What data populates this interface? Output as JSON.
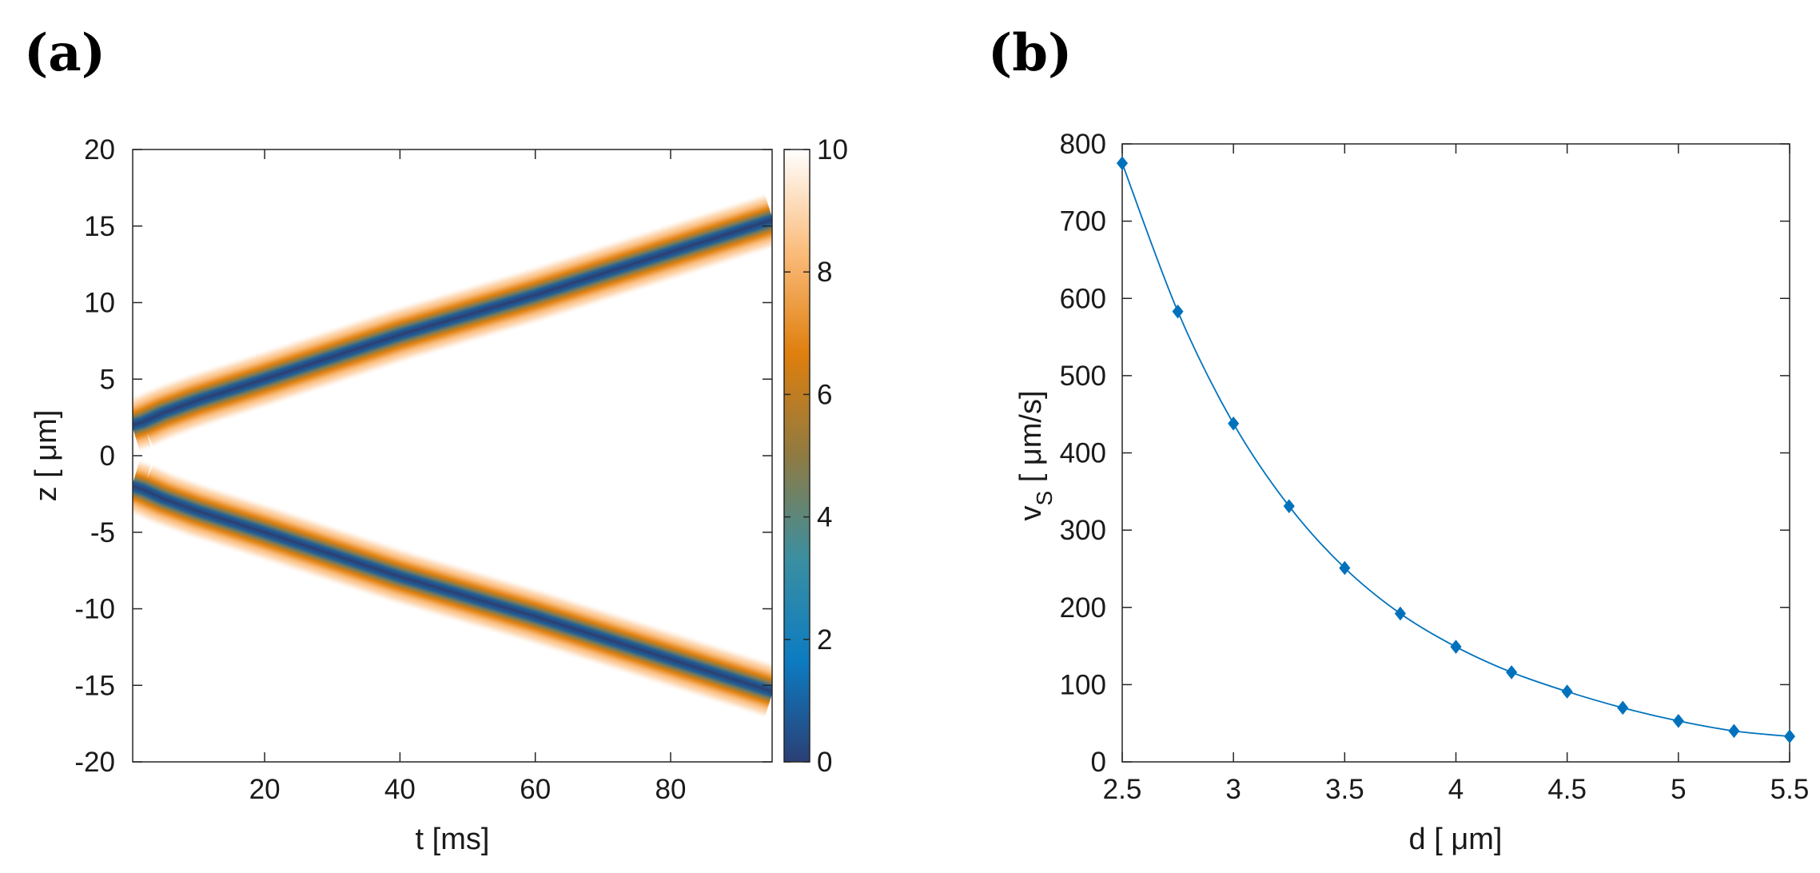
{
  "panels": {
    "a": {
      "label": "(a)"
    },
    "b": {
      "label": "(b)"
    }
  },
  "chart_data": [
    {
      "id": "a",
      "type": "heatmap",
      "title": "",
      "xlabel": "t [ms]",
      "ylabel": "z [ μm]",
      "xlim": [
        0.5,
        95
      ],
      "ylim": [
        -20,
        20
      ],
      "xticks": [
        20,
        40,
        60,
        80
      ],
      "xtick_labels": [
        "20",
        "40",
        "60",
        "80"
      ],
      "yticks": [
        -20,
        -15,
        -10,
        -5,
        0,
        5,
        10,
        15,
        20
      ],
      "ytick_labels": [
        "-20",
        "-15",
        "-10",
        "-5",
        "0",
        "5",
        "10",
        "15",
        "20"
      ],
      "colorbar": {
        "range": [
          0,
          10
        ],
        "ticks": [
          0,
          2,
          4,
          6,
          8,
          10
        ],
        "tick_labels": [
          "0",
          "2",
          "4",
          "6",
          "8",
          "10"
        ],
        "colors": [
          "#2b3f75",
          "#0c7cc2",
          "#3b8fa0",
          "#8f7a42",
          "#df7f0d",
          "#fbbc7c",
          "#ffffff"
        ]
      },
      "tracks": [
        {
          "name": "upper",
          "t": [
            0.5,
            2,
            5,
            10,
            20,
            40,
            60,
            80,
            95
          ],
          "z": [
            2.0,
            2.2,
            2.8,
            3.6,
            5.0,
            7.9,
            10.5,
            13.3,
            15.4
          ]
        },
        {
          "name": "lower",
          "t": [
            0.5,
            2,
            5,
            10,
            20,
            40,
            60,
            80,
            95
          ],
          "z": [
            -2.0,
            -2.2,
            -2.8,
            -3.6,
            -5.0,
            -7.9,
            -10.5,
            -13.3,
            -15.4
          ]
        }
      ]
    },
    {
      "id": "b",
      "type": "line",
      "title": "",
      "xlabel": "d [ μm]",
      "ylabel": "v",
      "ylabel_sub": "S",
      "ylabel_rest": " [ μm/s]",
      "xlim": [
        2.5,
        5.5
      ],
      "ylim": [
        0,
        800
      ],
      "xticks": [
        2.5,
        3,
        3.5,
        4,
        4.5,
        5,
        5.5
      ],
      "xtick_labels": [
        "2.5",
        "3",
        "3.5",
        "4",
        "4.5",
        "5",
        "5.5"
      ],
      "yticks": [
        0,
        100,
        200,
        300,
        400,
        500,
        600,
        700,
        800
      ],
      "ytick_labels": [
        "0",
        "100",
        "200",
        "300",
        "400",
        "500",
        "600",
        "700",
        "800"
      ],
      "series": [
        {
          "name": "v_S",
          "color": "#0072bd",
          "marker": "diamond",
          "x": [
            2.5,
            2.75,
            3.0,
            3.25,
            3.5,
            3.75,
            4.0,
            4.25,
            4.5,
            4.75,
            5.0,
            5.25,
            5.5
          ],
          "values": [
            775,
            583,
            438,
            331,
            251,
            192,
            149,
            116,
            91,
            70,
            53,
            40,
            33
          ]
        }
      ]
    }
  ]
}
